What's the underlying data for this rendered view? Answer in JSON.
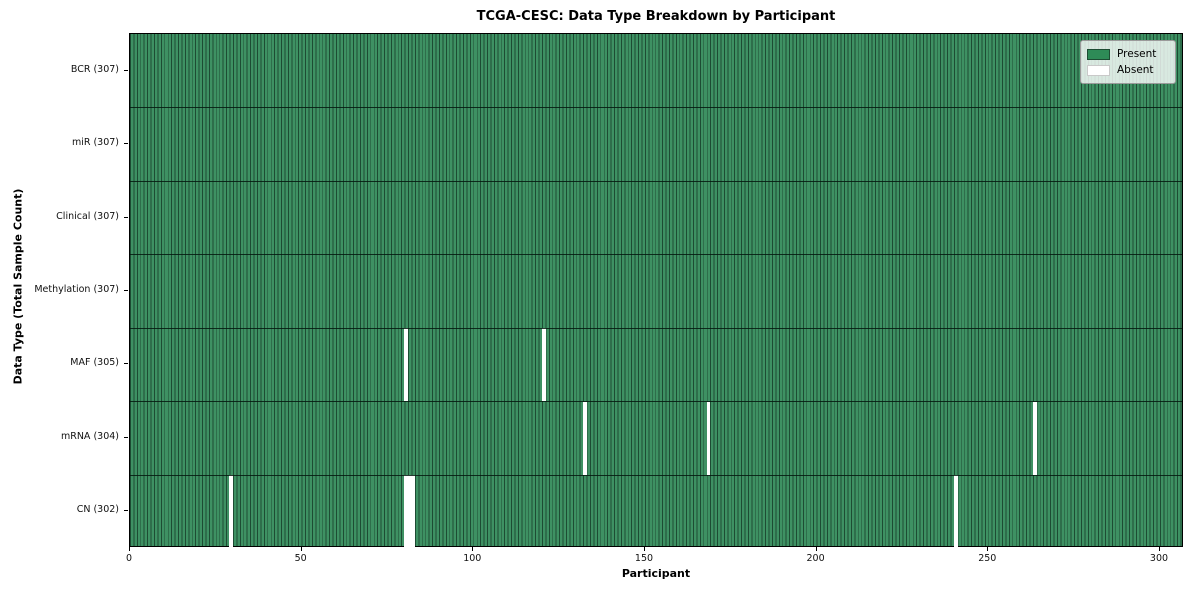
{
  "chart_data": {
    "type": "heatmap",
    "title": "TCGA-CESC: Data Type Breakdown by Participant",
    "xlabel": "Participant",
    "ylabel": "Data Type (Total Sample Count)",
    "x_range": [
      0,
      307
    ],
    "x_ticks": [
      0,
      50,
      100,
      150,
      200,
      250,
      300
    ],
    "n_participants": 307,
    "grid": false,
    "legend": {
      "position": "upper right",
      "present_label": "Present",
      "absent_label": "Absent"
    },
    "colors": {
      "present_fill": "#2e8b57",
      "present_cell_edge": "#1d4c33",
      "absent_fill": "#ffffff",
      "row_divider": "#0a1f14"
    },
    "rows": [
      {
        "name": "BCR",
        "total": 307,
        "label": "BCR (307)",
        "absent": []
      },
      {
        "name": "miR",
        "total": 307,
        "label": "miR (307)",
        "absent": []
      },
      {
        "name": "Clinical",
        "total": 307,
        "label": "Clinical (307)",
        "absent": []
      },
      {
        "name": "Methylation",
        "total": 307,
        "label": "Methylation (307)",
        "absent": []
      },
      {
        "name": "MAF",
        "total": 305,
        "label": "MAF (305)",
        "absent": [
          80,
          120
        ]
      },
      {
        "name": "mRNA",
        "total": 304,
        "label": "mRNA (304)",
        "absent": [
          132,
          168,
          263
        ]
      },
      {
        "name": "CN",
        "total": 302,
        "label": "CN (302)",
        "absent": [
          29,
          80,
          81,
          82,
          240
        ]
      }
    ]
  }
}
